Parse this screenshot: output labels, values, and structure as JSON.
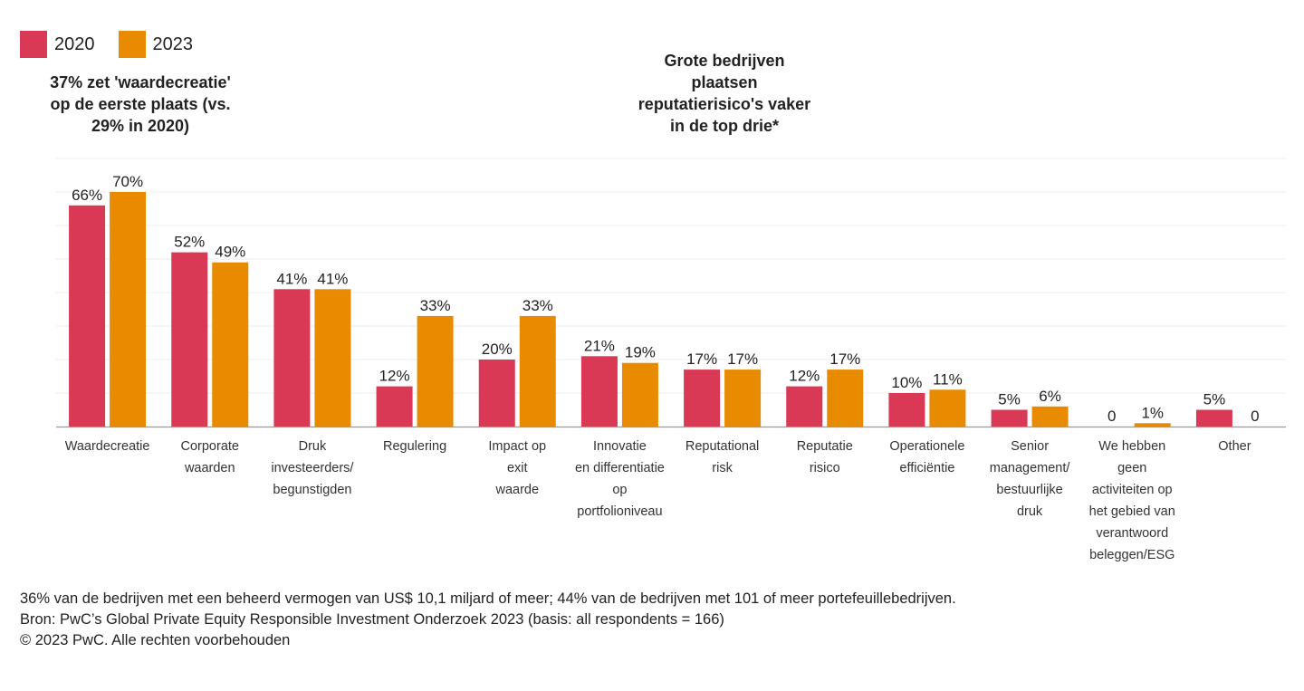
{
  "chart_data": {
    "type": "bar",
    "title": "",
    "xlabel": "",
    "ylabel": "",
    "ylim": [
      0,
      80
    ],
    "grid": true,
    "gridline_values": [
      10,
      20,
      30,
      40,
      50,
      60,
      70,
      80
    ],
    "legend_position": "top-left",
    "categories": [
      "Waardecreatie",
      "Corporate waarden",
      "Druk investeerders/ begunstigden",
      "Regulering",
      "Impact op exit waarde",
      "Innovatie en differentiatie op portfolioniveau",
      "Reputational risk",
      "Reputatie risico",
      "Operationele efficiëntie",
      "Senior management/ bestuurlijke druk",
      "We hebben geen activiteiten op het gebied van verantwoord beleggen/ESG",
      "Other"
    ],
    "category_lines": [
      [
        "Waardecreatie"
      ],
      [
        "Corporate",
        "waarden"
      ],
      [
        "Druk",
        "investeerders/",
        "begunstigden"
      ],
      [
        "Regulering"
      ],
      [
        "Impact op",
        "exit",
        "waarde"
      ],
      [
        "Innovatie",
        "en differentiatie",
        "op",
        "portfolioniveau"
      ],
      [
        "Reputational",
        "risk"
      ],
      [
        "Reputatie",
        "risico"
      ],
      [
        "Operationele",
        "efficiëntie"
      ],
      [
        "Senior",
        "management/",
        "bestuurlijke",
        "druk"
      ],
      [
        "We hebben",
        "geen",
        "activiteiten op",
        "het gebied van",
        "verantwoord",
        "beleggen/ESG"
      ],
      [
        "Other"
      ]
    ],
    "series": [
      {
        "name": "2020",
        "color": "#d93954",
        "values": [
          66,
          52,
          41,
          12,
          20,
          21,
          17,
          12,
          10,
          5,
          0,
          5
        ],
        "labels": [
          "66%",
          "52%",
          "41%",
          "12%",
          "20%",
          "21%",
          "17%",
          "12%",
          "10%",
          "5%",
          "0",
          "5%"
        ]
      },
      {
        "name": "2023",
        "color": "#e88b00",
        "values": [
          70,
          49,
          41,
          33,
          33,
          19,
          17,
          17,
          11,
          6,
          1,
          0
        ],
        "labels": [
          "70%",
          "49%",
          "41%",
          "33%",
          "33%",
          "19%",
          "17%",
          "17%",
          "11%",
          "6%",
          "1%",
          "0"
        ]
      }
    ],
    "annotations": [
      {
        "name": "annotation-waardecreatie",
        "lines": [
          "37% zet 'waardecreatie'",
          "op de eerste plaats (vs.",
          "29% in 2020)"
        ]
      },
      {
        "name": "annotation-grote-bedrijven",
        "lines": [
          "Grote bedrijven",
          "plaatsen",
          "reputatierisico's vaker",
          "in de top drie*"
        ]
      }
    ]
  },
  "legend": [
    {
      "label": "2020",
      "color": "#d93954"
    },
    {
      "label": "2023",
      "color": "#e88b00"
    }
  ],
  "footer": {
    "note": "36% van de bedrijven met een beheerd vermogen van US$ 10,1 miljard of meer; 44% van de bedrijven met 101 of meer portefeuillebedrijven.",
    "source": "Bron: PwC’s Global Private Equity Responsible Investment Onderzoek 2023 (basis: all respondents = 166)",
    "copyright": "© 2023 PwC. Alle rechten voorbehouden"
  }
}
